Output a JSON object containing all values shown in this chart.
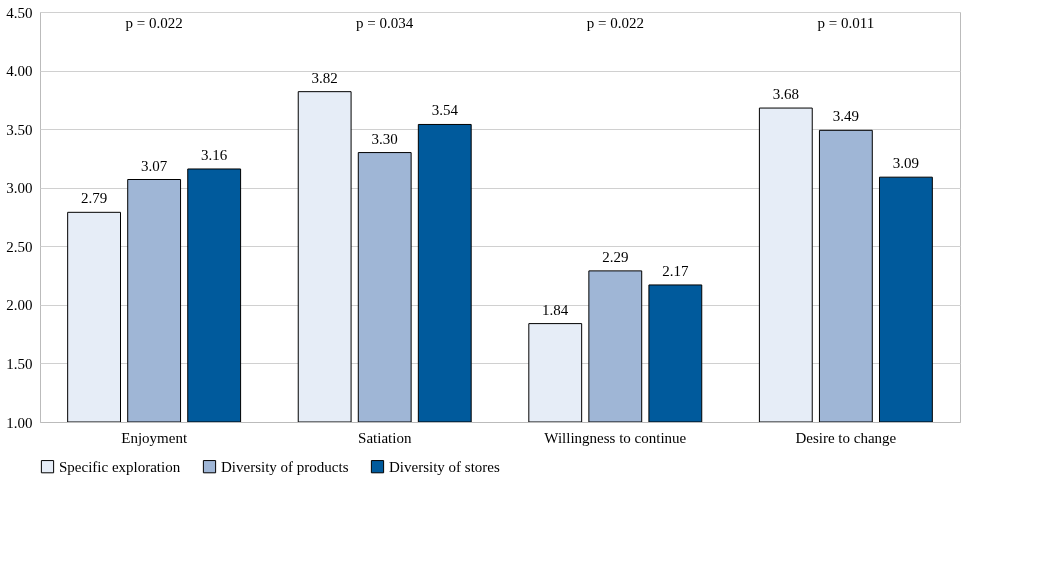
{
  "chart_data": {
    "type": "bar",
    "categories": [
      "Enjoyment",
      "Satiation",
      "Willingness to continue",
      "Desire to change"
    ],
    "series": [
      {
        "name": "Specific exploration",
        "color": "#e6edf7",
        "values": [
          2.79,
          3.82,
          1.84,
          3.68
        ],
        "value_labels": [
          "2.79",
          "3.82",
          "1.84",
          "3.68"
        ]
      },
      {
        "name": "Diversity of products",
        "color": "#9fb6d6",
        "values": [
          3.07,
          3.3,
          2.29,
          3.49
        ],
        "value_labels": [
          "3.07",
          "3.30",
          "2.29",
          "3.49"
        ]
      },
      {
        "name": "Diversity of stores",
        "color": "#005a9c",
        "values": [
          3.16,
          3.54,
          2.17,
          3.09
        ],
        "value_labels": [
          "3.16",
          "3.54",
          "2.17",
          "3.09"
        ]
      }
    ],
    "ylim": [
      1.0,
      4.5
    ],
    "yticks": [
      {
        "value": 1.0,
        "label": "1.00"
      },
      {
        "value": 1.5,
        "label": "1.50"
      },
      {
        "value": 2.0,
        "label": "2.00"
      },
      {
        "value": 2.5,
        "label": "2.50"
      },
      {
        "value": 3.0,
        "label": "3.00"
      },
      {
        "value": 3.5,
        "label": "3.50"
      },
      {
        "value": 4.0,
        "label": "4.00"
      },
      {
        "value": 4.5,
        "label": "4.50"
      }
    ],
    "grid": "y",
    "legend": "bottom",
    "annotations": [
      "p = 0.022",
      "p = 0.034",
      "p = 0.022",
      "p = 0.011"
    ]
  }
}
